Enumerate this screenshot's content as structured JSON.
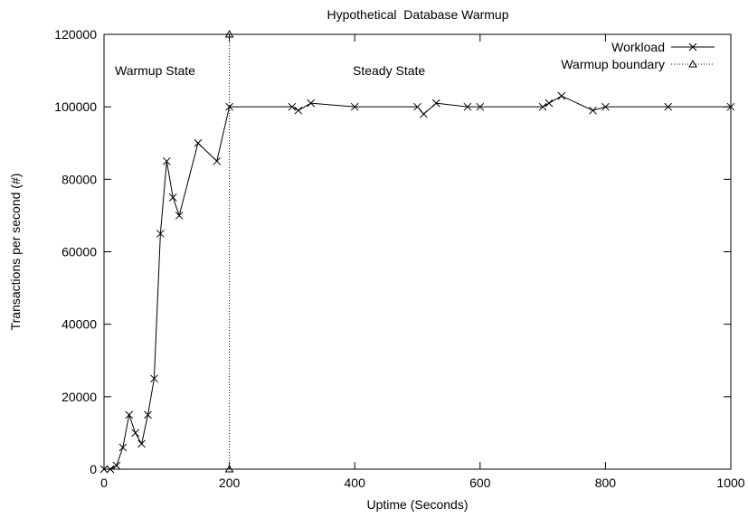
{
  "chart_data": {
    "type": "line",
    "title": "Hypothetical  Database Warmup",
    "xlabel": "Uptime (Seconds)",
    "ylabel": "Transactions per second (#)",
    "xlim": [
      0,
      1000
    ],
    "ylim": [
      0,
      120000
    ],
    "x_ticks": [
      "0",
      "200",
      "400",
      "600",
      "800",
      "1000"
    ],
    "y_ticks": [
      "0",
      "20000",
      "40000",
      "60000",
      "80000",
      "100000",
      "120000"
    ],
    "grid": false,
    "legend_position": "top-right",
    "annotations": [
      "Warmup State",
      "Steady State"
    ],
    "series": [
      {
        "name": "Workload",
        "marker": "x",
        "style": "solid",
        "x": [
          0,
          10,
          20,
          30,
          40,
          50,
          60,
          70,
          80,
          90,
          100,
          110,
          120,
          150,
          180,
          200,
          300,
          310,
          330,
          400,
          500,
          510,
          530,
          580,
          600,
          700,
          710,
          730,
          780,
          800,
          900,
          1000
        ],
        "y": [
          0,
          0,
          1000,
          6000,
          15000,
          10000,
          7000,
          15000,
          25000,
          65000,
          85000,
          75000,
          70000,
          90000,
          85000,
          100000,
          100000,
          99000,
          101000,
          100000,
          100000,
          98000,
          101000,
          100000,
          100000,
          100000,
          101000,
          103000,
          99000,
          100000,
          100000,
          100000
        ]
      },
      {
        "name": "Warmup boundary",
        "marker": "triangle",
        "style": "dotted",
        "x": [
          200,
          200
        ],
        "y": [
          0,
          120000
        ]
      }
    ]
  }
}
